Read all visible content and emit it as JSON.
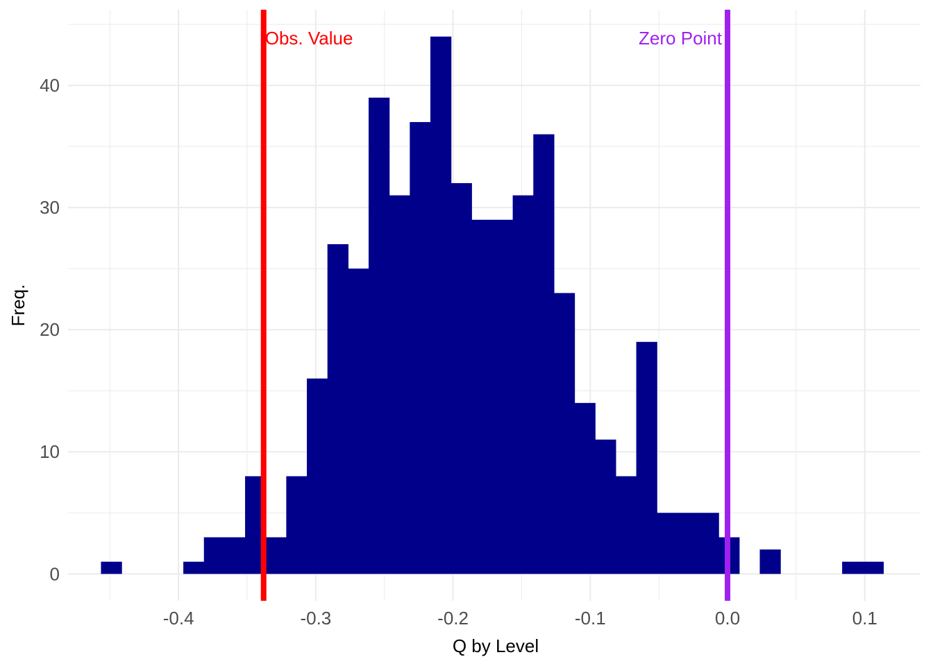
{
  "chart_data": {
    "type": "bar",
    "subtype": "histogram",
    "title": "",
    "xlabel": "Q by Level",
    "ylabel": "Freq.",
    "xlim": [
      -0.4805,
      0.1406
    ],
    "ylim": [
      -2.2,
      46.2
    ],
    "x_ticks": [
      -0.4,
      -0.3,
      -0.2,
      -0.1,
      0.0,
      0.1
    ],
    "x_tick_labels": [
      "-0.4",
      "-0.3",
      "-0.2",
      "-0.1",
      "0.0",
      "0.1"
    ],
    "y_ticks": [
      0,
      10,
      20,
      30,
      40
    ],
    "y_tick_labels": [
      "0",
      "10",
      "20",
      "30",
      "40"
    ],
    "grid": true,
    "bar_color": "#00008B",
    "bins": {
      "start": -0.4565,
      "width": 0.015,
      "counts": [
        1,
        0,
        0,
        0,
        1,
        3,
        3,
        8,
        3,
        8,
        16,
        27,
        25,
        39,
        31,
        37,
        44,
        32,
        29,
        29,
        31,
        36,
        23,
        14,
        11,
        8,
        19,
        5,
        5,
        5,
        3,
        0,
        2,
        0,
        0,
        0,
        1,
        1
      ]
    },
    "reference_lines": [
      {
        "label": "Obs. Value",
        "x": -0.338,
        "color": "#FF0000",
        "label_side": "right"
      },
      {
        "label": "Zero Point",
        "x": 0.0,
        "color": "#A020F0",
        "label_side": "left"
      }
    ]
  }
}
